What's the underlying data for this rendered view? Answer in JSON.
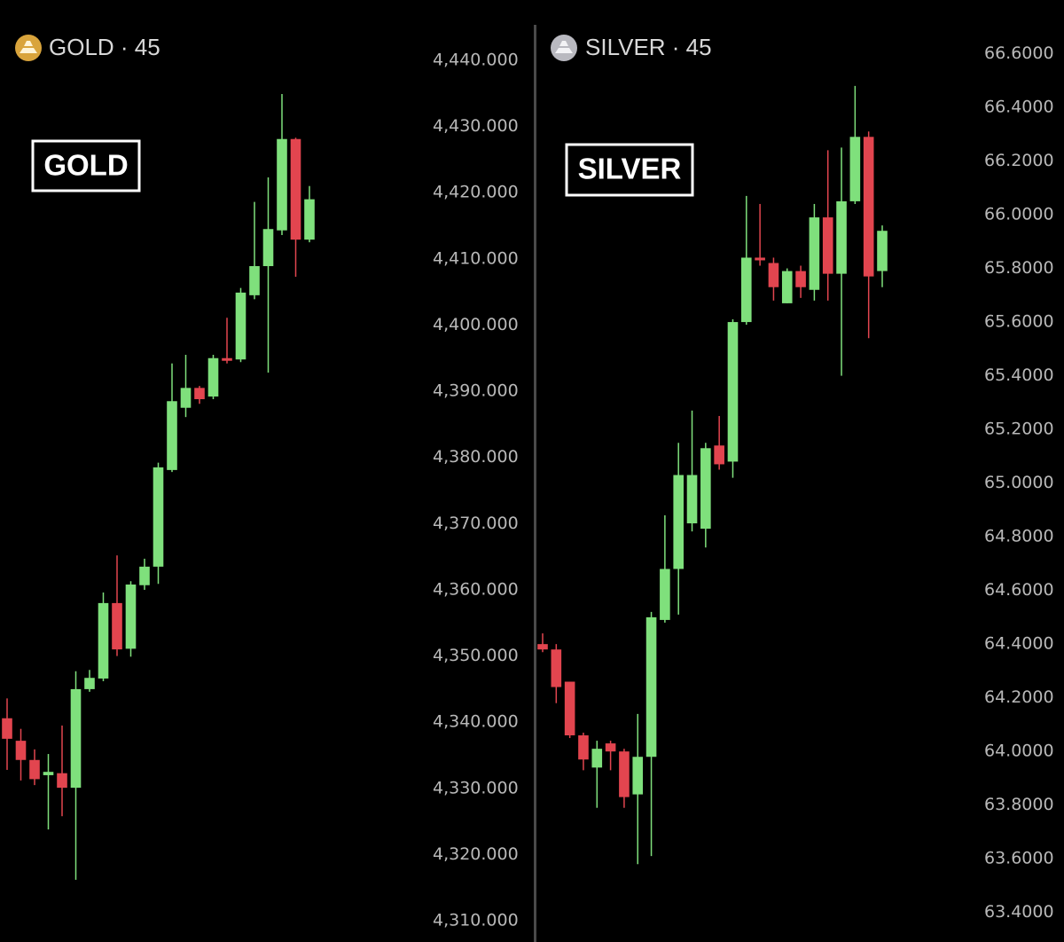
{
  "chart_data": [
    {
      "type": "candlestick",
      "title": "GOLD · 45",
      "annotation": "GOLD",
      "up_color": "#7fe07c",
      "down_color": "#e2454f",
      "open": [
        4340.6,
        4337.2,
        4334.3,
        4332.0,
        4332.3,
        4330.1,
        4345.0,
        4346.6,
        4358.0,
        4351.1,
        4360.7,
        4363.5,
        4378.1,
        4387.5,
        4390.5,
        4389.2,
        4395.0,
        4394.8,
        4404.5,
        4408.9,
        4414.3,
        4428.1,
        4412.9
      ],
      "high": [
        4343.6,
        4339.0,
        4335.9,
        4335.2,
        4339.5,
        4347.7,
        4347.9,
        4359.6,
        4365.2,
        4361.3,
        4364.7,
        4379.2,
        4394.2,
        4395.5,
        4390.8,
        4395.5,
        4401.1,
        4405.6,
        4418.6,
        4422.3,
        4434.9,
        4428.3,
        4421.0
      ],
      "low": [
        4332.8,
        4331.2,
        4330.5,
        4323.8,
        4325.8,
        4316.2,
        4344.6,
        4346.2,
        4350.0,
        4349.9,
        4360.0,
        4360.9,
        4377.8,
        4386.1,
        4388.1,
        4388.8,
        4394.2,
        4394.4,
        4403.9,
        4392.8,
        4413.6,
        4407.3,
        4412.5
      ],
      "close": [
        4337.5,
        4334.3,
        4331.4,
        4332.5,
        4330.1,
        4345.0,
        4346.7,
        4358.0,
        4351.0,
        4360.8,
        4363.5,
        4378.5,
        4388.5,
        4390.5,
        4388.8,
        4395.0,
        4394.6,
        4404.9,
        4408.9,
        4414.5,
        4428.1,
        4412.9,
        4419.0
      ],
      "ylim": [
        4306.8,
        4449.1
      ],
      "yticks": [
        {
          "value": 4440,
          "label": "4,440.000"
        },
        {
          "value": 4430,
          "label": "4,430.000"
        },
        {
          "value": 4420,
          "label": "4,420.000"
        },
        {
          "value": 4410,
          "label": "4,410.000"
        },
        {
          "value": 4400,
          "label": "4,400.000"
        },
        {
          "value": 4390,
          "label": "4,390.000"
        },
        {
          "value": 4380,
          "label": "4,380.000"
        },
        {
          "value": 4370,
          "label": "4,370.000"
        },
        {
          "value": 4360,
          "label": "4,360.000"
        },
        {
          "value": 4350,
          "label": "4,350.000"
        },
        {
          "value": 4340,
          "label": "4,340.000"
        },
        {
          "value": 4330,
          "label": "4,330.000"
        },
        {
          "value": 4320,
          "label": "4,320.000"
        },
        {
          "value": 4310,
          "label": "4,310.000"
        }
      ]
    },
    {
      "type": "candlestick",
      "title": "SILVER · 45",
      "annotation": "SILVER",
      "up_color": "#7fe07c",
      "down_color": "#e2454f",
      "open": [
        64.4,
        64.38,
        64.26,
        64.06,
        63.94,
        64.03,
        64.0,
        63.84,
        63.98,
        64.49,
        64.68,
        64.85,
        64.83,
        65.14,
        65.08,
        65.6,
        65.84,
        65.82,
        65.67,
        65.79,
        65.72,
        65.99,
        65.78,
        66.05,
        66.29,
        65.79
      ],
      "high": [
        64.44,
        64.4,
        64.26,
        64.07,
        64.04,
        64.04,
        64.01,
        64.14,
        64.52,
        64.88,
        65.15,
        65.27,
        65.15,
        65.25,
        65.61,
        66.07,
        66.04,
        65.84,
        65.8,
        65.81,
        66.04,
        66.24,
        66.25,
        66.48,
        66.31,
        65.96
      ],
      "low": [
        64.37,
        64.18,
        64.05,
        63.93,
        63.79,
        63.93,
        63.79,
        63.58,
        63.61,
        64.48,
        64.51,
        64.82,
        64.76,
        65.05,
        65.02,
        65.59,
        65.81,
        65.68,
        65.67,
        65.69,
        65.68,
        65.68,
        65.4,
        66.04,
        65.54,
        65.73
      ],
      "close": [
        64.38,
        64.24,
        64.06,
        63.97,
        64.01,
        64.0,
        63.83,
        63.98,
        64.5,
        64.68,
        65.03,
        65.03,
        65.13,
        65.07,
        65.6,
        65.84,
        65.83,
        65.73,
        65.79,
        65.73,
        65.99,
        65.78,
        66.05,
        66.29,
        65.77,
        65.94
      ],
      "ylim": [
        63.29,
        66.8
      ],
      "yticks": [
        {
          "value": 66.6,
          "label": "66.6000"
        },
        {
          "value": 66.4,
          "label": "66.4000"
        },
        {
          "value": 66.2,
          "label": "66.2000"
        },
        {
          "value": 66.0,
          "label": "66.0000"
        },
        {
          "value": 65.8,
          "label": "65.8000"
        },
        {
          "value": 65.6,
          "label": "65.6000"
        },
        {
          "value": 65.4,
          "label": "65.4000"
        },
        {
          "value": 65.2,
          "label": "65.2000"
        },
        {
          "value": 65.0,
          "label": "65.0000"
        },
        {
          "value": 64.8,
          "label": "64.8000"
        },
        {
          "value": 64.6,
          "label": "64.6000"
        },
        {
          "value": 64.4,
          "label": "64.4000"
        },
        {
          "value": 64.2,
          "label": "64.2000"
        },
        {
          "value": 64.0,
          "label": "64.0000"
        },
        {
          "value": 63.8,
          "label": "63.8000"
        },
        {
          "value": 63.6,
          "label": "63.6000"
        },
        {
          "value": 63.4,
          "label": "63.4000"
        }
      ]
    }
  ]
}
